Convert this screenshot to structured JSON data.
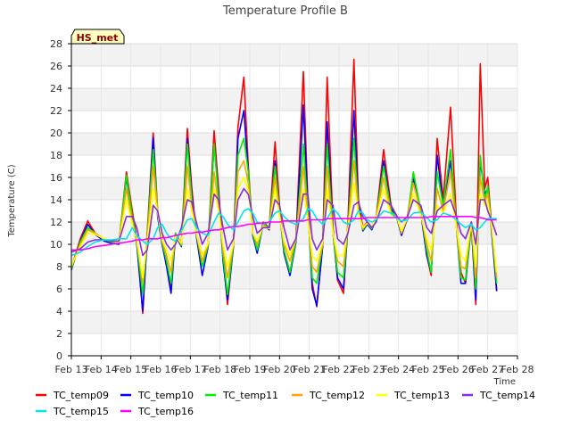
{
  "chart_data": {
    "type": "line",
    "title": "Temperature Profile B",
    "xlabel": "Time",
    "ylabel": "Temperature (C)",
    "badge": "HS_met",
    "xlim": [
      "Feb 13",
      "Feb 28"
    ],
    "ylim": [
      0,
      28
    ],
    "x_ticks": [
      "Feb 13",
      "Feb 14",
      "Feb 15",
      "Feb 16",
      "Feb 17",
      "Feb 18",
      "Feb 19",
      "Feb 20",
      "Feb 21",
      "Feb 22",
      "Feb 23",
      "Feb 24",
      "Feb 25",
      "Feb 26",
      "Feb 27",
      "Feb 28"
    ],
    "y_ticks": [
      0,
      2,
      4,
      6,
      8,
      10,
      12,
      14,
      16,
      18,
      20,
      22,
      24,
      26,
      28
    ],
    "grid": true,
    "legend_position": "bottom",
    "x_times": [
      13.0,
      13.3,
      13.55,
      13.8,
      14.1,
      14.35,
      14.6,
      14.85,
      15.05,
      15.2,
      15.4,
      15.55,
      15.75,
      15.9,
      16.05,
      16.2,
      16.35,
      16.5,
      16.7,
      16.9,
      17.05,
      17.2,
      17.4,
      17.6,
      17.8,
      17.95,
      18.1,
      18.25,
      18.45,
      18.6,
      18.8,
      18.95,
      19.1,
      19.25,
      19.45,
      19.65,
      19.85,
      20.0,
      20.15,
      20.35,
      20.55,
      20.8,
      20.95,
      21.1,
      21.25,
      21.45,
      21.6,
      21.8,
      21.95,
      22.15,
      22.3,
      22.5,
      22.65,
      22.8,
      22.95,
      23.1,
      23.25,
      23.5,
      23.75,
      23.95,
      24.1,
      24.3,
      24.5,
      24.75,
      24.95,
      25.1,
      25.3,
      25.5,
      25.75,
      25.95,
      26.1,
      26.25,
      26.45,
      26.6,
      26.75,
      26.9,
      27.0,
      27.15,
      27.3
    ],
    "series": [
      {
        "name": "TC_temp09",
        "color": "#ff0000",
        "values": [
          7.9,
          10.5,
          12.1,
          11.0,
          10.4,
          10.2,
          10.1,
          16.5,
          13.0,
          10.5,
          3.8,
          11.0,
          20.0,
          13.0,
          10.5,
          8.2,
          6.0,
          11.0,
          10.0,
          20.4,
          15.0,
          11.0,
          9.0,
          10.0,
          20.2,
          15.0,
          9.0,
          4.6,
          10.0,
          20.5,
          25.0,
          17.0,
          11.0,
          9.5,
          12.0,
          11.5,
          19.2,
          13.5,
          9.5,
          7.5,
          10.5,
          25.5,
          14.0,
          6.5,
          4.4,
          10.0,
          25.0,
          11.5,
          6.8,
          5.6,
          12.0,
          26.6,
          14.0,
          11.5,
          12.0,
          11.5,
          12.5,
          18.5,
          13.5,
          12.5,
          11.0,
          12.5,
          16.0,
          13.0,
          9.0,
          7.2,
          19.5,
          14.0,
          22.3,
          12.0,
          7.5,
          6.5,
          12.0,
          4.6,
          26.2,
          15.0,
          16.0,
          11.0,
          5.8
        ]
      },
      {
        "name": "TC_temp10",
        "color": "#0000ff",
        "values": [
          7.7,
          10.3,
          11.8,
          10.9,
          10.3,
          10.1,
          10.0,
          16.0,
          12.5,
          10.0,
          4.0,
          10.5,
          19.6,
          12.5,
          10.0,
          8.0,
          5.6,
          10.8,
          9.8,
          19.5,
          14.5,
          10.8,
          7.2,
          9.8,
          19.0,
          14.5,
          8.5,
          5.0,
          9.8,
          19.5,
          22.0,
          16.5,
          10.8,
          9.2,
          11.8,
          11.3,
          17.5,
          13.0,
          9.2,
          7.2,
          10.2,
          22.5,
          13.5,
          6.0,
          4.5,
          9.8,
          21.0,
          11.0,
          7.0,
          6.0,
          11.5,
          22.0,
          13.5,
          11.2,
          11.8,
          11.3,
          12.3,
          17.5,
          13.2,
          12.3,
          10.8,
          12.3,
          15.8,
          12.8,
          9.0,
          7.5,
          18.0,
          13.5,
          17.5,
          11.5,
          6.5,
          6.5,
          11.8,
          5.0,
          17.5,
          14.5,
          15.0,
          10.5,
          5.8
        ]
      },
      {
        "name": "TC_temp11",
        "color": "#00ee00",
        "values": [
          7.8,
          10.2,
          11.5,
          11.0,
          10.4,
          10.2,
          10.1,
          16.2,
          12.5,
          10.2,
          5.5,
          10.8,
          18.5,
          13.0,
          10.2,
          8.5,
          6.5,
          11.0,
          9.9,
          19.0,
          14.0,
          11.0,
          8.0,
          9.9,
          19.0,
          14.0,
          9.0,
          5.5,
          10.0,
          18.0,
          19.5,
          16.5,
          11.0,
          9.5,
          11.8,
          11.5,
          17.0,
          13.0,
          9.5,
          7.5,
          10.4,
          19.0,
          13.0,
          7.0,
          6.5,
          10.0,
          19.0,
          11.0,
          7.5,
          7.0,
          11.5,
          19.5,
          13.2,
          11.3,
          11.9,
          11.4,
          12.4,
          17.0,
          13.0,
          12.4,
          11.0,
          12.4,
          16.5,
          13.0,
          9.5,
          7.5,
          16.5,
          13.5,
          18.5,
          11.5,
          7.0,
          6.8,
          12.0,
          6.0,
          18.0,
          14.0,
          15.2,
          11.0,
          6.5
        ]
      },
      {
        "name": "TC_temp12",
        "color": "#ffa500",
        "values": [
          8.0,
          10.0,
          11.3,
          11.0,
          10.5,
          10.3,
          10.2,
          15.0,
          12.0,
          10.3,
          6.5,
          10.5,
          17.0,
          13.0,
          10.3,
          9.0,
          7.5,
          10.8,
          10.0,
          17.0,
          13.5,
          11.0,
          8.5,
          10.0,
          16.5,
          13.5,
          9.5,
          7.0,
          10.0,
          16.5,
          17.5,
          15.5,
          11.0,
          10.0,
          11.7,
          11.4,
          16.0,
          12.8,
          10.0,
          8.5,
          10.5,
          17.0,
          12.5,
          8.0,
          7.5,
          10.0,
          17.0,
          11.0,
          8.5,
          8.0,
          11.5,
          17.5,
          13.0,
          11.4,
          11.9,
          11.5,
          12.4,
          16.0,
          12.8,
          12.4,
          11.0,
          12.4,
          15.5,
          12.8,
          10.0,
          8.5,
          15.0,
          13.0,
          16.5,
          11.5,
          8.0,
          7.8,
          12.0,
          7.0,
          16.0,
          13.8,
          14.5,
          11.0,
          7.0
        ]
      },
      {
        "name": "TC_temp13",
        "color": "#ffff00",
        "values": [
          8.1,
          9.8,
          11.0,
          10.9,
          10.5,
          10.3,
          10.2,
          14.0,
          11.8,
          10.4,
          7.0,
          10.3,
          15.0,
          12.8,
          10.4,
          9.5,
          8.5,
          10.7,
          10.1,
          15.0,
          13.0,
          11.0,
          9.0,
          10.1,
          15.0,
          13.0,
          10.0,
          8.0,
          10.1,
          15.0,
          16.0,
          14.8,
          11.0,
          10.3,
          11.6,
          11.4,
          15.0,
          12.5,
          10.3,
          9.0,
          10.6,
          15.0,
          12.2,
          9.0,
          8.5,
          10.2,
          15.0,
          11.0,
          9.0,
          9.0,
          11.4,
          15.5,
          12.8,
          11.5,
          11.9,
          11.6,
          12.4,
          15.0,
          12.6,
          12.4,
          11.2,
          12.4,
          14.5,
          12.6,
          10.5,
          9.5,
          13.5,
          12.8,
          14.5,
          11.5,
          9.0,
          8.5,
          12.0,
          8.0,
          14.5,
          13.5,
          13.8,
          11.2,
          7.5
        ]
      },
      {
        "name": "TC_temp14",
        "color": "#8a2be2",
        "values": [
          9.3,
          9.6,
          10.2,
          10.4,
          10.4,
          10.3,
          10.3,
          12.5,
          12.5,
          11.5,
          9.0,
          9.5,
          13.5,
          13.0,
          11.0,
          10.0,
          9.5,
          10.0,
          11.5,
          14.0,
          13.8,
          12.0,
          10.0,
          11.0,
          14.5,
          14.0,
          11.5,
          9.5,
          10.5,
          14.0,
          15.0,
          14.5,
          12.5,
          11.0,
          11.5,
          11.5,
          14.0,
          13.5,
          11.5,
          9.5,
          10.5,
          14.5,
          14.5,
          10.5,
          9.5,
          10.5,
          14.0,
          13.5,
          10.5,
          10.0,
          11.0,
          13.5,
          13.8,
          12.5,
          12.0,
          11.5,
          12.0,
          14.0,
          13.5,
          12.5,
          12.0,
          12.5,
          14.0,
          13.5,
          11.5,
          11.0,
          13.0,
          13.5,
          14.0,
          12.5,
          11.0,
          10.5,
          12.0,
          10.0,
          14.0,
          14.0,
          13.0,
          12.0,
          10.8
        ]
      },
      {
        "name": "TC_temp15",
        "color": "#00e5ee",
        "values": [
          9.0,
          9.3,
          9.8,
          10.2,
          10.4,
          10.4,
          10.5,
          10.5,
          11.5,
          10.8,
          10.3,
          10.0,
          10.5,
          11.5,
          11.8,
          11.0,
          10.5,
          10.3,
          11.2,
          12.2,
          12.3,
          11.5,
          11.0,
          10.8,
          12.0,
          12.8,
          12.5,
          11.8,
          11.3,
          12.0,
          13.0,
          13.2,
          12.8,
          12.0,
          11.8,
          12.0,
          12.8,
          13.0,
          12.5,
          12.0,
          11.8,
          12.3,
          13.2,
          13.0,
          12.3,
          11.8,
          12.3,
          13.2,
          12.8,
          12.0,
          11.8,
          12.2,
          13.0,
          12.8,
          12.2,
          12.0,
          12.2,
          13.0,
          12.8,
          12.3,
          12.1,
          12.2,
          12.8,
          12.9,
          12.4,
          12.0,
          12.2,
          12.8,
          12.6,
          12.2,
          11.8,
          11.5,
          11.8,
          11.3,
          11.5,
          12.0,
          12.3,
          12.3,
          12.3
        ]
      },
      {
        "name": "TC_temp16",
        "color": "#ff00ff",
        "values": [
          9.5,
          9.5,
          9.6,
          9.8,
          9.9,
          10.0,
          10.1,
          10.2,
          10.3,
          10.4,
          10.4,
          10.5,
          10.5,
          10.5,
          10.6,
          10.6,
          10.7,
          10.8,
          10.9,
          11.0,
          11.0,
          11.1,
          11.1,
          11.2,
          11.3,
          11.3,
          11.4,
          11.5,
          11.6,
          11.6,
          11.7,
          11.8,
          11.8,
          11.9,
          11.9,
          12.0,
          12.0,
          12.0,
          12.1,
          12.1,
          12.1,
          12.1,
          12.2,
          12.2,
          12.2,
          12.2,
          12.3,
          12.3,
          12.3,
          12.3,
          12.3,
          12.3,
          12.3,
          12.3,
          12.4,
          12.4,
          12.4,
          12.4,
          12.4,
          12.4,
          12.4,
          12.4,
          12.4,
          12.4,
          12.4,
          12.5,
          12.5,
          12.5,
          12.5,
          12.5,
          12.5,
          12.5,
          12.5,
          12.4,
          12.4,
          12.3,
          12.2,
          12.2,
          12.2
        ]
      }
    ]
  }
}
